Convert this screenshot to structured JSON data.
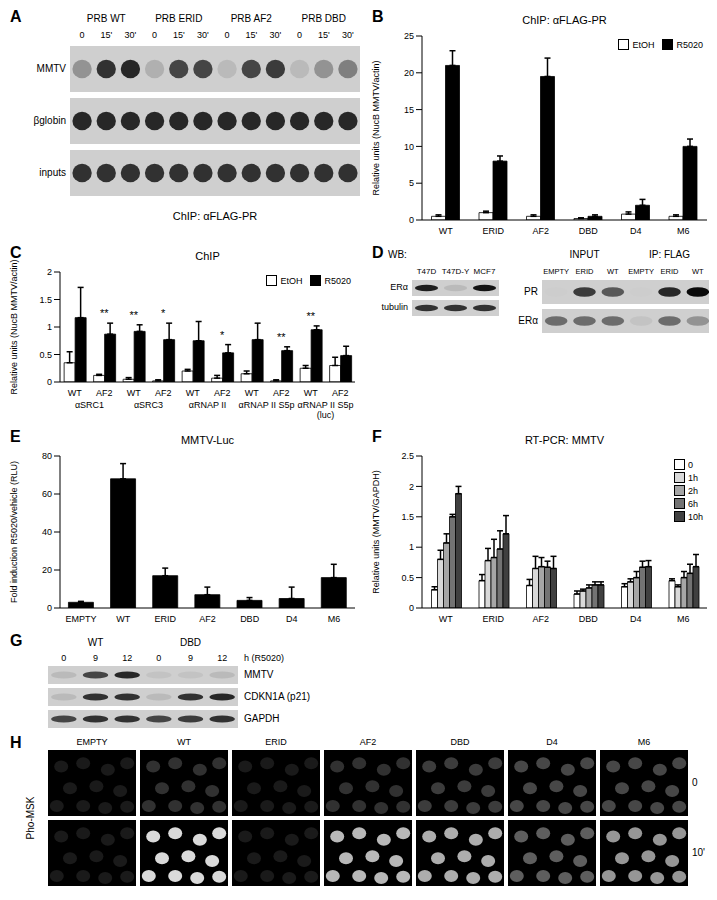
{
  "chart_data": [
    {
      "panel": "B",
      "type": "bar",
      "title": "ChIP: αFLAG-PR",
      "y_label": "Relative units (NucB MMTV/actin)",
      "categories": [
        "WT",
        "ERID",
        "AF2",
        "DBD",
        "D4",
        "M6"
      ],
      "series": [
        {
          "name": "EtOH",
          "color": "#ffffff",
          "values": [
            0.5,
            1,
            0.5,
            0.2,
            0.8,
            0.5
          ],
          "errors": [
            0.2,
            0.2,
            0.2,
            0.1,
            0.3,
            0.2
          ]
        },
        {
          "name": "R5020",
          "color": "#000000",
          "values": [
            21,
            8,
            19.5,
            0.5,
            2,
            10
          ],
          "errors": [
            2,
            0.7,
            2.5,
            0.2,
            0.8,
            1
          ]
        }
      ],
      "ylim": [
        0,
        25
      ],
      "yticks": [
        0,
        5,
        10,
        15,
        20,
        25
      ],
      "legend": "top-right"
    },
    {
      "panel": "C",
      "type": "bar",
      "title": "ChIP",
      "y_label": "Relative units (NucB MMTV/actin)",
      "categories": [
        "WT",
        "AF2",
        "WT",
        "AF2",
        "WT",
        "AF2",
        "WT",
        "AF2",
        "WT",
        "AF2"
      ],
      "groups": [
        "αSRC1",
        "αSRC3",
        "αRNAP II",
        "αRNAP II S5p",
        "αRNAP II S5p (luc)"
      ],
      "series": [
        {
          "name": "EtOH",
          "color": "#ffffff",
          "values": [
            0.35,
            0.12,
            0.05,
            0.02,
            0.2,
            0.07,
            0.15,
            0.02,
            0.25,
            0.3
          ],
          "errors": [
            0.2,
            0.02,
            0.03,
            0.02,
            0.03,
            0.05,
            0.05,
            0.02,
            0.05,
            0.15
          ]
        },
        {
          "name": "R5020",
          "color": "#000000",
          "values": [
            1.17,
            0.87,
            0.92,
            0.77,
            0.75,
            0.53,
            0.77,
            0.57,
            0.95,
            0.48
          ],
          "errors": [
            0.55,
            0.2,
            0.12,
            0.3,
            0.35,
            0.15,
            0.3,
            0.07,
            0.07,
            0.17
          ],
          "significance": [
            null,
            "**",
            "**",
            "*",
            null,
            "*",
            null,
            "**",
            "**",
            null
          ]
        }
      ],
      "ylim": [
        0,
        2
      ],
      "yticks": [
        0,
        0.5,
        1,
        1.5,
        2
      ],
      "legend": "top-right"
    },
    {
      "panel": "E",
      "type": "bar",
      "title": "MMTV-Luc",
      "y_label": "Fold induction R5020/vehicle (RLU)",
      "categories": [
        "EMPTY",
        "WT",
        "ERID",
        "AF2",
        "DBD",
        "D4",
        "M6"
      ],
      "values": [
        3,
        68,
        17,
        7,
        4,
        5,
        16
      ],
      "errors": [
        0.5,
        8,
        4,
        4,
        1.5,
        6,
        7
      ],
      "color": "#000000",
      "ylim": [
        0,
        80
      ],
      "yticks": [
        0,
        20,
        40,
        60,
        80
      ]
    },
    {
      "panel": "F",
      "type": "bar",
      "title": "RT-PCR: MMTV",
      "y_label": "Relative units (MMTV/GAPDH)",
      "categories": [
        "WT",
        "ERID",
        "AF2",
        "DBD",
        "D4",
        "M6"
      ],
      "series": [
        {
          "name": "0",
          "color": "#ffffff",
          "values": [
            0.3,
            0.45,
            0.37,
            0.23,
            0.35,
            0.45
          ],
          "errors": [
            0.05,
            0.1,
            0.1,
            0.05,
            0.05,
            0.03
          ]
        },
        {
          "name": "1h",
          "color": "#d9d9d9",
          "values": [
            0.8,
            0.78,
            0.65,
            0.28,
            0.43,
            0.35
          ],
          "errors": [
            0.15,
            0.2,
            0.2,
            0.03,
            0.05,
            0.03
          ]
        },
        {
          "name": "2h",
          "color": "#a6a6a6",
          "values": [
            1.07,
            0.83,
            0.68,
            0.33,
            0.5,
            0.5
          ],
          "errors": [
            0.15,
            0.3,
            0.15,
            0.05,
            0.1,
            0.1
          ]
        },
        {
          "name": "6h",
          "color": "#737373",
          "values": [
            1.5,
            0.97,
            0.67,
            0.38,
            0.67,
            0.57
          ],
          "errors": [
            0.04,
            0.3,
            0.1,
            0.05,
            0.1,
            0.15
          ]
        },
        {
          "name": "10h",
          "color": "#404040",
          "values": [
            1.88,
            1.22,
            0.65,
            0.38,
            0.68,
            0.68
          ],
          "errors": [
            0.12,
            0.3,
            0.2,
            0.05,
            0.1,
            0.2
          ]
        }
      ],
      "ylim": [
        0,
        2.5
      ],
      "yticks": [
        0,
        0.5,
        1,
        1.5,
        2,
        2.5
      ],
      "legend": "top-right"
    }
  ],
  "images": {
    "A": {
      "panel": "A",
      "caption": "ChIP: αFLAG-PR",
      "groups": [
        "PRB WT",
        "PRB ERID",
        "PRB AF2",
        "PRB DBD"
      ],
      "lanes": [
        "0",
        "15'",
        "30'",
        "0",
        "15'",
        "30'",
        "0",
        "15'",
        "30'",
        "0",
        "15'",
        "30'"
      ],
      "rows": [
        {
          "label": "MMTV",
          "intensity": [
            0.3,
            0.8,
            0.85,
            0.15,
            0.7,
            0.7,
            0.1,
            0.7,
            0.75,
            0.1,
            0.3,
            0.4
          ]
        },
        {
          "label": "βglobin",
          "intensity": [
            0.85,
            0.85,
            0.85,
            0.85,
            0.85,
            0.85,
            0.85,
            0.85,
            0.85,
            0.85,
            0.85,
            0.85
          ]
        },
        {
          "label": "inputs",
          "intensity": [
            0.8,
            0.8,
            0.8,
            0.8,
            0.8,
            0.8,
            0.8,
            0.8,
            0.8,
            0.8,
            0.8,
            0.8
          ]
        }
      ]
    },
    "D": {
      "panel": "D",
      "left": {
        "title": "WB:",
        "lanes": [
          "T47D",
          "T47D-Y",
          "MCF7"
        ],
        "rows": [
          {
            "label": "ERα",
            "intensity": [
              0.9,
              0.1,
              0.95
            ]
          },
          {
            "label": "tubulin",
            "intensity": [
              0.8,
              0.8,
              0.8
            ]
          }
        ]
      },
      "right": {
        "groups": [
          "INPUT",
          "IP: FLAG"
        ],
        "lanes": [
          "EMPTY",
          "ERID",
          "WT",
          "EMPTY",
          "ERID",
          "WT"
        ],
        "rows": [
          {
            "label": "PR",
            "intensity": [
              0,
              0.75,
              0.6,
              0,
              0.85,
              1
            ]
          },
          {
            "label": "ERα",
            "intensity": [
              0.5,
              0.5,
              0.5,
              0.05,
              0.5,
              0.3
            ]
          }
        ]
      }
    },
    "G": {
      "panel": "G",
      "groups": [
        "WT",
        "DBD"
      ],
      "lanes": [
        "0",
        "9",
        "12",
        "0",
        "9",
        "12"
      ],
      "unit": "h (R5020)",
      "rows": [
        {
          "label": "MMTV",
          "intensity": [
            0.1,
            0.7,
            0.85,
            0.05,
            0.05,
            0.1
          ]
        },
        {
          "label": "CDKN1A (p21)",
          "intensity": [
            0.1,
            0.8,
            0.8,
            0.1,
            0.8,
            0.85
          ]
        },
        {
          "label": "GAPDH",
          "intensity": [
            0.7,
            0.8,
            0.8,
            0.7,
            0.75,
            0.8
          ]
        }
      ]
    },
    "H": {
      "panel": "H",
      "label": "Pho-MSK",
      "columns": [
        "EMPTY",
        "WT",
        "ERID",
        "AF2",
        "DBD",
        "D4",
        "M6"
      ],
      "rows": [
        {
          "label": "0",
          "intensity": [
            0.05,
            0.15,
            0.05,
            0.15,
            0.2,
            0.25,
            0.25
          ]
        },
        {
          "label": "10'",
          "intensity": [
            0.05,
            0.9,
            0.05,
            0.75,
            0.7,
            0.35,
            0.6
          ]
        }
      ]
    }
  }
}
